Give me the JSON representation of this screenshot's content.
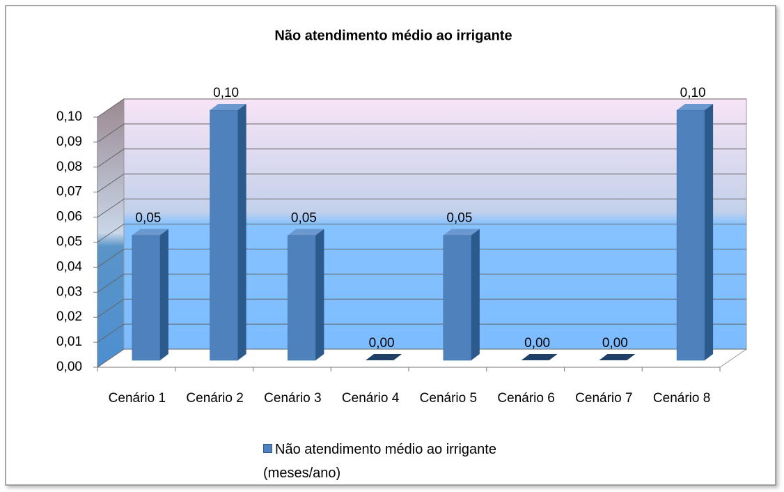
{
  "chart_data": {
    "type": "bar3d",
    "title": "Não atendimento médio ao irrigante",
    "categories": [
      "Cenário 1",
      "Cenário 2",
      "Cenário 3",
      "Cenário 4",
      "Cenário 5",
      "Cenário 6",
      "Cenário 7",
      "Cenário 8"
    ],
    "series": [
      {
        "name": "Não atendimento médio ao irrigante (meses/ano)",
        "color": "#4f81bd",
        "values": [
          0.05,
          0.1,
          0.05,
          0,
          0.05,
          0,
          0,
          0.1
        ],
        "value_labels": [
          "0,05",
          "0,10",
          "0,05",
          "0,00",
          "0,05",
          "0,00",
          "0,00",
          "0,10"
        ]
      }
    ],
    "ylim": [
      0,
      0.1
    ],
    "yticks": [
      {
        "value": 0,
        "label": "0,00"
      },
      {
        "value": 0.01,
        "label": "0,01"
      },
      {
        "value": 0.02,
        "label": "0,02"
      },
      {
        "value": 0.03,
        "label": "0,03"
      },
      {
        "value": 0.04,
        "label": "0,04"
      },
      {
        "value": 0.05,
        "label": "0,05"
      },
      {
        "value": 0.06,
        "label": "0,06"
      },
      {
        "value": 0.07,
        "label": "0,07"
      },
      {
        "value": 0.08,
        "label": "0,08"
      },
      {
        "value": 0.09,
        "label": "0,09"
      },
      {
        "value": 0.1,
        "label": "0,10"
      }
    ],
    "grid": true,
    "legend": "bottom"
  }
}
